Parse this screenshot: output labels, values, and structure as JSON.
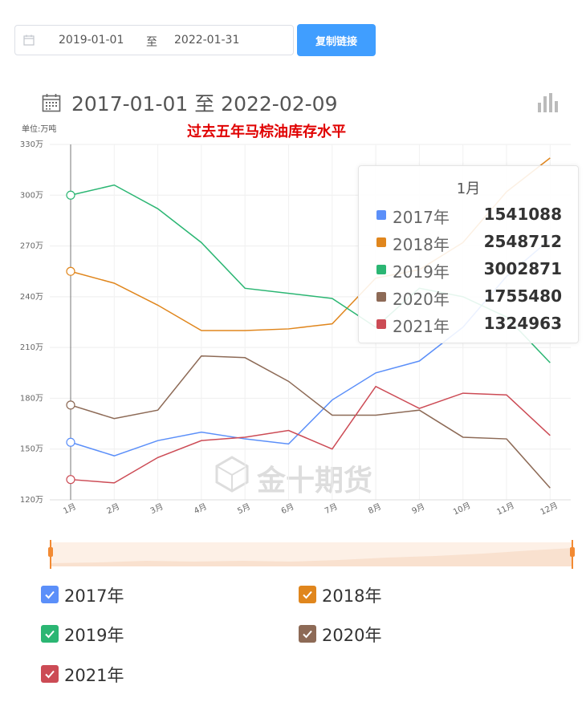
{
  "filter": {
    "start_date": "2019-01-01",
    "separator": "至",
    "end_date": "2022-01-31",
    "copy_button": "复制链接"
  },
  "range_header": {
    "text": "2017-01-01 至   2022-02-09"
  },
  "watermark": "金十期货",
  "colors": {
    "2017年": "#5b8ff9",
    "2018年": "#e0861d",
    "2019年": "#2bb673",
    "2020年": "#8d6a56",
    "2021年": "#cc4b55",
    "primary_button": "#409eff",
    "title_red": "#e00000"
  },
  "chart_data": {
    "type": "line",
    "title": "过去五年马棕油库存水平",
    "unit_label": "单位:万吨",
    "categories": [
      "1月",
      "2月",
      "3月",
      "4月",
      "5月",
      "6月",
      "7月",
      "8月",
      "9月",
      "10月",
      "11月",
      "12月"
    ],
    "y_ticks": [
      "120万",
      "150万",
      "180万",
      "210万",
      "240万",
      "270万",
      "300万",
      "330万"
    ],
    "ylim": [
      120,
      330
    ],
    "grid": true,
    "series": [
      {
        "name": "2017年",
        "values": [
          154,
          146,
          155,
          160,
          156,
          153,
          179,
          195,
          202,
          222,
          252,
          274
        ]
      },
      {
        "name": "2018年",
        "values": [
          255,
          248,
          235,
          220,
          220,
          221,
          224,
          251,
          256,
          272,
          302,
          322
        ]
      },
      {
        "name": "2019年",
        "values": [
          300,
          306,
          292,
          272,
          245,
          242,
          239,
          222,
          245,
          240,
          228,
          201
        ]
      },
      {
        "name": "2020年",
        "values": [
          176,
          168,
          173,
          205,
          204,
          190,
          170,
          170,
          173,
          157,
          156,
          127
        ]
      },
      {
        "name": "2021年",
        "values": [
          132,
          130,
          145,
          155,
          157,
          161,
          150,
          187,
          174,
          183,
          182,
          158
        ]
      }
    ],
    "tooltip": {
      "title": "1月",
      "rows": [
        {
          "name": "2017年",
          "value": "1541088"
        },
        {
          "name": "2018年",
          "value": "2548712"
        },
        {
          "name": "2019年",
          "value": "3002871"
        },
        {
          "name": "2020年",
          "value": "1755480"
        },
        {
          "name": "2021年",
          "value": "1324963"
        }
      ]
    },
    "legend": [
      "2017年",
      "2018年",
      "2019年",
      "2020年",
      "2021年"
    ]
  }
}
